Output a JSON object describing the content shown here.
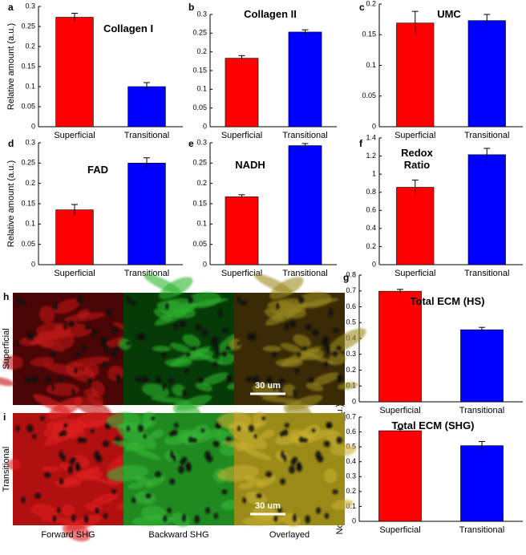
{
  "chart_data": [
    {
      "type": "bar",
      "panel": "a",
      "title": "Collagen I",
      "ylabel": "Relative amount (a.u.)",
      "categories": [
        "Superficial",
        "Transitional"
      ],
      "values": [
        0.273,
        0.1
      ],
      "errors": [
        0.01,
        0.01
      ],
      "colors": [
        "#ff0000",
        "#0000ff"
      ],
      "ylim": [
        0,
        0.3
      ],
      "yticks": [
        0,
        0.05,
        0.1,
        0.15,
        0.2,
        0.25,
        0.3
      ]
    },
    {
      "type": "bar",
      "panel": "b",
      "title": "Collagen II",
      "categories": [
        "Superficial",
        "Transitional"
      ],
      "values": [
        0.183,
        0.253
      ],
      "errors": [
        0.007,
        0.006
      ],
      "colors": [
        "#ff0000",
        "#0000ff"
      ],
      "ylim": [
        0,
        0.3
      ],
      "yticks": [
        0,
        0.05,
        0.1,
        0.15,
        0.2,
        0.25,
        0.3
      ]
    },
    {
      "type": "bar",
      "panel": "c",
      "title": "UMC",
      "categories": [
        "Superficial",
        "Transitional"
      ],
      "values": [
        0.169,
        0.173
      ],
      "errors": [
        0.019,
        0.01
      ],
      "colors": [
        "#ff0000",
        "#0000ff"
      ],
      "ylim": [
        0,
        0.2
      ],
      "yticks": [
        0,
        0.05,
        0.1,
        0.15,
        0.2
      ]
    },
    {
      "type": "bar",
      "panel": "d",
      "title": "FAD",
      "ylabel": "Relative amount (a.u.)",
      "categories": [
        "Superficial",
        "Transitional"
      ],
      "values": [
        0.135,
        0.25
      ],
      "errors": [
        0.013,
        0.013
      ],
      "colors": [
        "#ff0000",
        "#0000ff"
      ],
      "ylim": [
        0,
        0.3
      ],
      "yticks": [
        0,
        0.05,
        0.1,
        0.15,
        0.2,
        0.25,
        0.3
      ]
    },
    {
      "type": "bar",
      "panel": "e",
      "title": "NADH",
      "categories": [
        "Superficial",
        "Transitional"
      ],
      "values": [
        0.167,
        0.293
      ],
      "errors": [
        0.005,
        0.005
      ],
      "colors": [
        "#ff0000",
        "#0000ff"
      ],
      "ylim": [
        0,
        0.3
      ],
      "yticks": [
        0,
        0.05,
        0.1,
        0.15,
        0.2,
        0.25,
        0.3
      ]
    },
    {
      "type": "bar",
      "panel": "f",
      "title": "Redox Ratio",
      "categories": [
        "Superficial",
        "Transitional"
      ],
      "values": [
        0.855,
        1.215
      ],
      "errors": [
        0.08,
        0.07
      ],
      "colors": [
        "#ff0000",
        "#0000ff"
      ],
      "ylim": [
        0,
        1.4
      ],
      "yticks": [
        0,
        0.2,
        0.4,
        0.6,
        0.8,
        1,
        1.2,
        1.4
      ]
    },
    {
      "type": "bar",
      "panel": "g",
      "title": "Total ECM (HS)",
      "ylabel": "Relative amount (a.u.)",
      "categories": [
        "Superficial",
        "Transitional"
      ],
      "values": [
        0.698,
        0.455
      ],
      "errors": [
        0.012,
        0.015
      ],
      "colors": [
        "#ff0000",
        "#0000ff"
      ],
      "ylim": [
        0,
        0.8
      ],
      "yticks": [
        0,
        0.1,
        0.2,
        0.3,
        0.4,
        0.5,
        0.6,
        0.7,
        0.8
      ]
    },
    {
      "type": "bar",
      "panel": "j",
      "title": "Total ECM (SHG)",
      "ylabel": "Normalized relative amount (a.u.)",
      "categories": [
        "Superficial",
        "Transitional"
      ],
      "values": [
        0.608,
        0.508
      ],
      "errors": [
        0.01,
        0.028
      ],
      "colors": [
        "#ff0000",
        "#0000ff"
      ],
      "ylim": [
        0,
        0.7
      ],
      "yticks": [
        0,
        0.1,
        0.2,
        0.3,
        0.4,
        0.5,
        0.6,
        0.7
      ]
    }
  ],
  "images": {
    "rows": [
      {
        "panel": "h",
        "label": "Superficial",
        "scale_bar": "30 um"
      },
      {
        "panel": "i",
        "label": "Transitional",
        "scale_bar": "30 um"
      }
    ],
    "columns": [
      "Forward SHG",
      "Backward SHG",
      "Overlayed"
    ]
  }
}
